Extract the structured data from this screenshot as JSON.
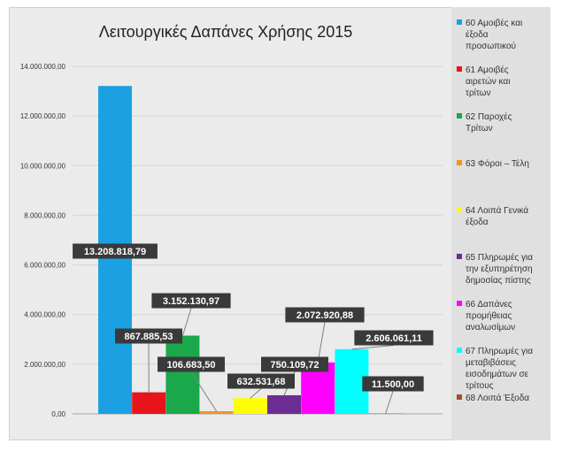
{
  "chart_data": {
    "type": "bar",
    "title": "Λειτουργικές Δαπάνες Χρήσης 2015",
    "xlabel": "",
    "ylabel": "",
    "ylim": [
      0,
      14000000
    ],
    "yticks": [
      "0,00",
      "2.000.000,00",
      "4.000.000,00",
      "6.000.000,00",
      "8.000.000,00",
      "10.000.000,00",
      "12.000.000,00",
      "14.000.000,00"
    ],
    "grid": true,
    "legend_position": "right",
    "categories": [
      "60 Αμοιβές και έξοδα προσωπικού",
      "61 Αμοιβές αιρετών και τρίτων",
      "62 Παροχές Τρίτων",
      "63 Φόροι – Τέλη",
      "64 Λοιπά Γενικά έξοδα",
      "65 Πληρωμές για την εξυπηρέτηση δημοσίας πίστης",
      "66 Δαπάνες προμήθειας αναλωσίμων",
      "67 Πληρωμές για μεταβιβάσεις εισοδημάτων σε τρίτους",
      "68 Λοιπά Έξοδα"
    ],
    "values": [
      13208818.79,
      867885.53,
      3152130.97,
      106683.5,
      632531.68,
      750109.72,
      2072920.88,
      2606061.11,
      11500.0
    ],
    "data_labels": [
      "13.208.818,79",
      "867.885,53",
      "3.152.130,97",
      "106.683,50",
      "632.531,68",
      "750.109,72",
      "2.072.920,88",
      "2.606.061,11",
      "11.500,00"
    ],
    "colors": [
      "#1ba1e2",
      "#e8141b",
      "#1aa84a",
      "#f0961e",
      "#ffff00",
      "#6b2d91",
      "#ff00ff",
      "#00ffff",
      "#a0522d"
    ],
    "legend": [
      [
        "60 Αμοιβές και",
        "έξοδα",
        "προσωπικού"
      ],
      [
        "61 Αμοιβές",
        "αιρετών και",
        "τρίτων"
      ],
      [
        "62 Παροχές",
        "Τρίτων"
      ],
      [
        "63 Φόροι – Τέλη"
      ],
      [
        "64 Λοιπά Γενικά",
        "έξοδα"
      ],
      [
        "65 Πληρωμές για",
        "την εξυπηρέτηση",
        "δημοσίας πίστης"
      ],
      [
        "66 Δαπάνες",
        "προμήθειας",
        "αναλωσίμων"
      ],
      [
        "67 Πληρωμές για",
        "μεταβιβάσεις",
        "εισοδημάτων σε",
        "τρίτους"
      ],
      [
        "68 Λοιπά Έξοδα"
      ]
    ]
  }
}
